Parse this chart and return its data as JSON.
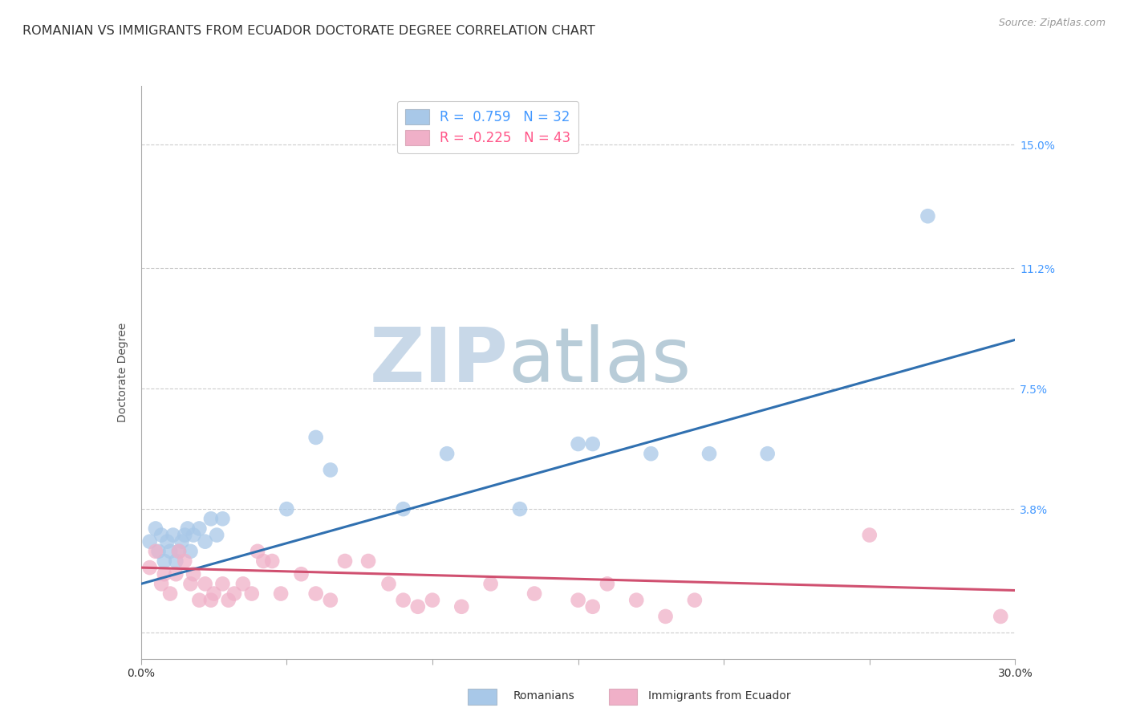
{
  "title": "ROMANIAN VS IMMIGRANTS FROM ECUADOR DOCTORATE DEGREE CORRELATION CHART",
  "source": "Source: ZipAtlas.com",
  "ylabel": "Doctorate Degree",
  "xlim": [
    0.0,
    0.3
  ],
  "ylim": [
    -0.008,
    0.168
  ],
  "xticks": [
    0.0,
    0.05,
    0.1,
    0.15,
    0.2,
    0.25,
    0.3
  ],
  "ytick_positions": [
    0.0,
    0.038,
    0.075,
    0.112,
    0.15
  ],
  "ytick_labels": [
    "",
    "3.8%",
    "7.5%",
    "11.2%",
    "15.0%"
  ],
  "romanian_R": 0.759,
  "romanian_N": 32,
  "ecuador_R": -0.225,
  "ecuador_N": 43,
  "romanian_color": "#a8c8e8",
  "romanian_line_color": "#3070b0",
  "ecuador_color": "#f0b0c8",
  "ecuador_line_color": "#d05070",
  "background_color": "#ffffff",
  "grid_color": "#cccccc",
  "watermark_zip": "ZIP",
  "watermark_atlas": "atlas",
  "watermark_color_zip": "#c8d8e8",
  "watermark_color_atlas": "#b8ccd8",
  "title_fontsize": 11.5,
  "axis_label_fontsize": 10,
  "tick_fontsize": 10,
  "legend_fontsize": 12,
  "romanian_trend_x": [
    0.0,
    0.3
  ],
  "romanian_trend_y": [
    0.015,
    0.09
  ],
  "ecuador_trend_x": [
    0.0,
    0.3
  ],
  "ecuador_trend_y": [
    0.02,
    0.013
  ],
  "romanians_scatter_x": [
    0.003,
    0.005,
    0.006,
    0.007,
    0.008,
    0.009,
    0.01,
    0.011,
    0.012,
    0.013,
    0.014,
    0.015,
    0.016,
    0.017,
    0.018,
    0.02,
    0.022,
    0.024,
    0.026,
    0.028,
    0.05,
    0.06,
    0.065,
    0.09,
    0.105,
    0.13,
    0.15,
    0.155,
    0.175,
    0.195,
    0.215,
    0.27
  ],
  "romanians_scatter_y": [
    0.028,
    0.032,
    0.025,
    0.03,
    0.022,
    0.028,
    0.025,
    0.03,
    0.022,
    0.025,
    0.028,
    0.03,
    0.032,
    0.025,
    0.03,
    0.032,
    0.028,
    0.035,
    0.03,
    0.035,
    0.038,
    0.06,
    0.05,
    0.038,
    0.055,
    0.038,
    0.058,
    0.058,
    0.055,
    0.055,
    0.055,
    0.128
  ],
  "ecuador_scatter_x": [
    0.003,
    0.005,
    0.007,
    0.008,
    0.01,
    0.012,
    0.013,
    0.015,
    0.017,
    0.018,
    0.02,
    0.022,
    0.024,
    0.025,
    0.028,
    0.03,
    0.032,
    0.035,
    0.038,
    0.04,
    0.042,
    0.045,
    0.048,
    0.055,
    0.06,
    0.065,
    0.07,
    0.078,
    0.085,
    0.09,
    0.095,
    0.1,
    0.11,
    0.12,
    0.135,
    0.15,
    0.155,
    0.16,
    0.17,
    0.18,
    0.19,
    0.25,
    0.295
  ],
  "ecuador_scatter_y": [
    0.02,
    0.025,
    0.015,
    0.018,
    0.012,
    0.018,
    0.025,
    0.022,
    0.015,
    0.018,
    0.01,
    0.015,
    0.01,
    0.012,
    0.015,
    0.01,
    0.012,
    0.015,
    0.012,
    0.025,
    0.022,
    0.022,
    0.012,
    0.018,
    0.012,
    0.01,
    0.022,
    0.022,
    0.015,
    0.01,
    0.008,
    0.01,
    0.008,
    0.015,
    0.012,
    0.01,
    0.008,
    0.015,
    0.01,
    0.005,
    0.01,
    0.03,
    0.005
  ]
}
